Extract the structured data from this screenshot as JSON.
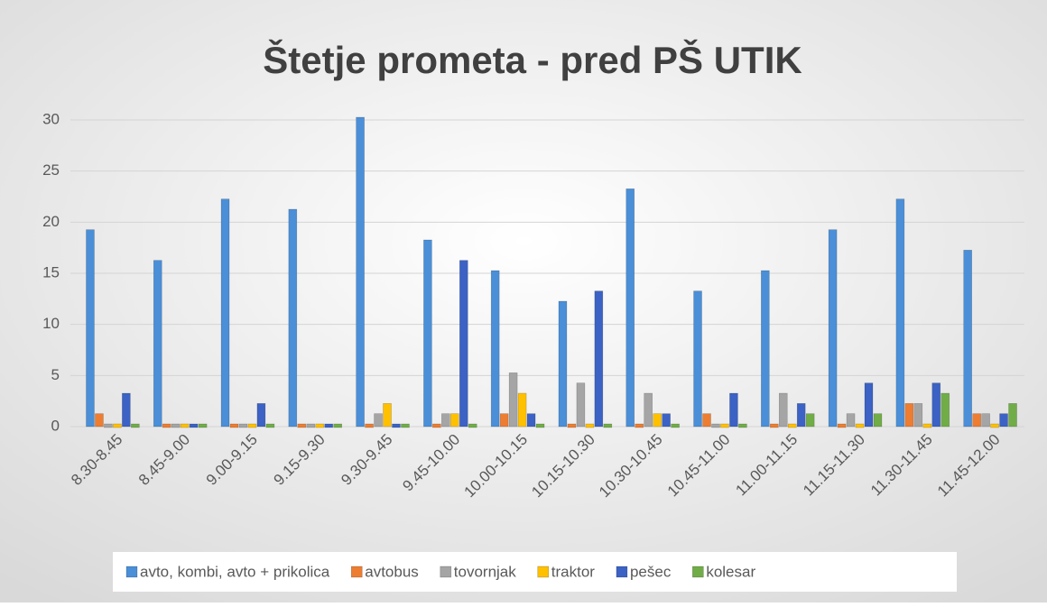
{
  "chart_data": {
    "type": "bar",
    "title": "Štetje prometa - pred PŠ UTIK",
    "categories": [
      "8.30-8.45",
      "8.45-9.00",
      "9.00-9.15",
      "9.15-9.30",
      "9.30-9.45",
      "9.45-10.00",
      "10.00-10.15",
      "10.15-10.30",
      "10.30-10.45",
      "10.45-11.00",
      "11.00-11.15",
      "11.15-11.30",
      "11.30-11.45",
      "11.45-12.00"
    ],
    "series": [
      {
        "name": "avto, kombi, avto + prikolica",
        "color": "#4a8fd8",
        "values": [
          19,
          16,
          22,
          21,
          30,
          18,
          15,
          12,
          23,
          13,
          15,
          19,
          22,
          17
        ]
      },
      {
        "name": "avtobus",
        "color": "#ed7d31",
        "values": [
          1,
          0,
          0,
          0,
          0,
          0,
          1,
          0,
          0,
          1,
          0,
          0,
          2,
          1
        ]
      },
      {
        "name": "tovornjak",
        "color": "#a5a5a5",
        "values": [
          0,
          0,
          0,
          0,
          1,
          1,
          5,
          4,
          3,
          0,
          3,
          1,
          2,
          1
        ]
      },
      {
        "name": "traktor",
        "color": "#ffc000",
        "values": [
          0,
          0,
          0,
          0,
          2,
          1,
          3,
          0,
          1,
          0,
          0,
          0,
          0,
          0
        ]
      },
      {
        "name": "pešec",
        "color": "#3b62c4",
        "values": [
          3,
          0,
          2,
          0,
          0,
          16,
          1,
          13,
          1,
          3,
          2,
          4,
          4,
          1
        ]
      },
      {
        "name": "kolesar",
        "color": "#70ad47",
        "values": [
          0,
          0,
          0,
          0,
          0,
          0,
          0,
          0,
          0,
          0,
          1,
          1,
          3,
          2
        ]
      }
    ],
    "ylim": [
      0,
      30
    ],
    "yticks": [
      0,
      5,
      10,
      15,
      20,
      25,
      30
    ],
    "grid": true,
    "legend": "bottom"
  }
}
